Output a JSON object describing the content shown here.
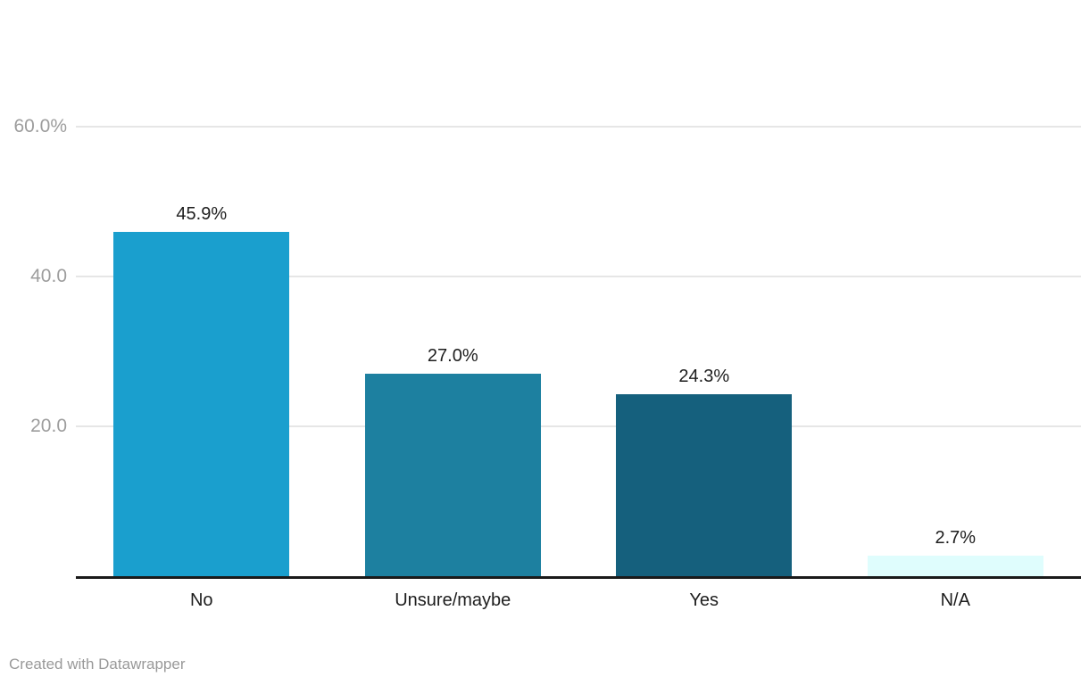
{
  "chart_data": {
    "type": "bar",
    "categories": [
      "No",
      "Unsure/maybe",
      "Yes",
      "N/A"
    ],
    "values": [
      45.9,
      27.0,
      24.3,
      2.7
    ],
    "value_labels": [
      "45.9%",
      "27.0%",
      "24.3%",
      "2.7%"
    ],
    "bar_colors": [
      "#1a9fce",
      "#1d80a0",
      "#15607d",
      "#dffdfd"
    ],
    "title": "",
    "xlabel": "",
    "ylabel": "",
    "ylim": [
      0,
      60
    ],
    "yticks": [
      {
        "value": 20,
        "label": "20.0"
      },
      {
        "value": 40,
        "label": "40.0"
      },
      {
        "value": 60,
        "label": "60.0%"
      }
    ],
    "grid": true,
    "legend": false
  },
  "footer": {
    "credit": "Created with Datawrapper"
  },
  "colors": {
    "background": "#ffffff",
    "gridline": "#e6e6e6",
    "baseline": "#1a1a1a",
    "tick_label": "#9d9d9d",
    "value_label": "#1d1d1d",
    "category_label": "#1d1d1d",
    "footer_text": "#999999"
  }
}
